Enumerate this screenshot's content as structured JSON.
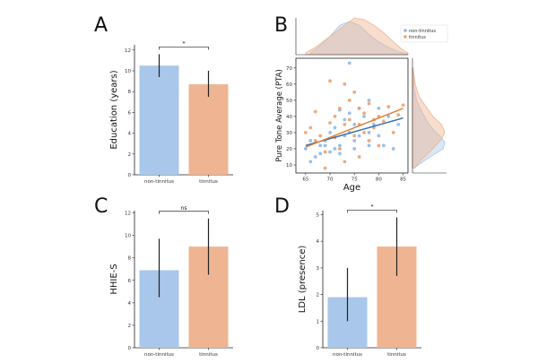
{
  "colors": {
    "non_tinnitus": "#a9c7ea",
    "tinnitus": "#efb491",
    "non_tinnitus_dot": "#8fb8e6",
    "tinnitus_dot": "#eda06e",
    "non_tinnitus_line": "#2f6fb0",
    "tinnitus_line": "#e07a2e",
    "error_bar": "#222222"
  },
  "chart_data": [
    {
      "panel": "A",
      "type": "bar",
      "categories": [
        "non-tinnitus",
        "tinnitus"
      ],
      "values": [
        10.5,
        8.7
      ],
      "errors": [
        [
          9.4,
          11.6
        ],
        [
          7.5,
          10.0
        ]
      ],
      "ylabel": "Education (years)",
      "ylim": [
        0,
        12.5
      ],
      "yticks": [
        0,
        2,
        4,
        6,
        8,
        10,
        12
      ],
      "significance": "*"
    },
    {
      "panel": "B",
      "type": "scatter",
      "xlabel": "Age",
      "ylabel": "Pure Tone Average (PTA)",
      "xlim": [
        63,
        86
      ],
      "ylim": [
        5,
        76
      ],
      "xticks": [
        65,
        70,
        75,
        80,
        85
      ],
      "yticks": [
        10,
        20,
        30,
        40,
        50,
        60,
        70
      ],
      "legend": [
        "non-tinnitus",
        "tinnitus"
      ],
      "series": [
        {
          "name": "non-tinnitus",
          "x": [
            65,
            66,
            67,
            68,
            68,
            69,
            70,
            70,
            71,
            71,
            72,
            72,
            73,
            73,
            74,
            74,
            74,
            75,
            75,
            76,
            76,
            77,
            78,
            78,
            79,
            80,
            80,
            81,
            82,
            83,
            84,
            66,
            69,
            72,
            75,
            78
          ],
          "y": [
            20,
            12,
            15,
            22,
            17,
            25,
            18,
            30,
            20,
            33,
            22,
            17,
            28,
            38,
            42,
            30,
            73,
            25,
            35,
            45,
            28,
            40,
            22,
            50,
            35,
            28,
            45,
            22,
            40,
            20,
            35,
            25,
            22,
            44,
            20,
            30
          ],
          "fit": [
            [
              65,
              22
            ],
            [
              85,
              39
            ]
          ]
        },
        {
          "name": "tinnitus",
          "x": [
            65,
            66,
            67,
            67,
            68,
            69,
            70,
            70,
            71,
            71,
            72,
            72,
            73,
            73,
            74,
            74,
            75,
            75,
            76,
            76,
            77,
            77,
            78,
            78,
            79,
            80,
            80,
            81,
            82,
            83,
            84,
            85,
            69,
            73,
            76,
            79
          ],
          "y": [
            30,
            33,
            25,
            43,
            28,
            18,
            36,
            62,
            27,
            40,
            20,
            45,
            35,
            12,
            38,
            50,
            28,
            55,
            35,
            15,
            42,
            30,
            48,
            25,
            33,
            40,
            22,
            37,
            46,
            30,
            41,
            47,
            8,
            60,
            45,
            38
          ],
          "fit": [
            [
              65,
              21
            ],
            [
              85,
              45
            ]
          ]
        }
      ]
    },
    {
      "panel": "C",
      "type": "bar",
      "categories": [
        "non-tinnitus",
        "tinnitus"
      ],
      "values": [
        6.9,
        9.0
      ],
      "errors": [
        [
          4.5,
          9.7
        ],
        [
          6.5,
          11.5
        ]
      ],
      "ylabel": "HHIE-S",
      "ylim": [
        0,
        12.2
      ],
      "yticks": [
        0,
        2,
        4,
        6,
        8,
        10,
        12
      ],
      "significance": "ns"
    },
    {
      "panel": "D",
      "type": "bar",
      "categories": [
        "non-tinnitus",
        "tinnitus"
      ],
      "values": [
        1.9,
        3.8
      ],
      "errors": [
        [
          1.0,
          3.0
        ],
        [
          2.7,
          4.9
        ]
      ],
      "ylabel": "LDL (presence)",
      "ylim": [
        0,
        5.15
      ],
      "yticks": [
        0,
        1,
        2,
        3,
        4,
        5
      ],
      "significance": "*"
    }
  ]
}
